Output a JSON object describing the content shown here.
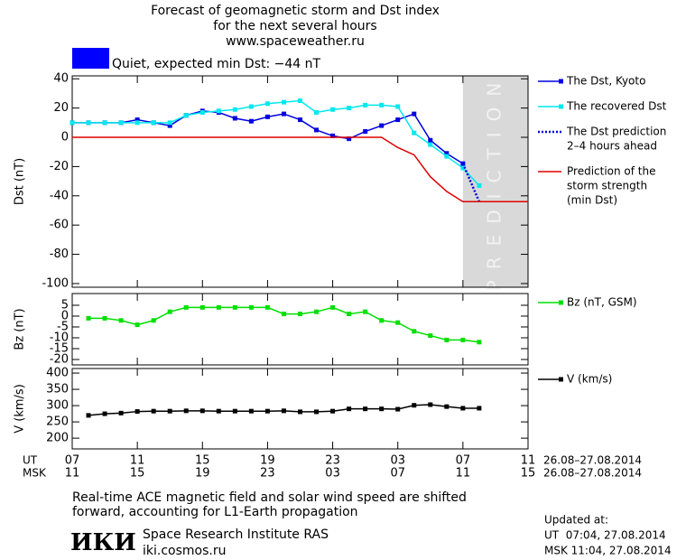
{
  "header": {
    "title_lines": [
      "Forecast of geomagnetic storm and Dst index",
      "for the next several hours",
      "www.spaceweather.ru"
    ],
    "status": "Quiet, expected min Dst: −44 nT",
    "status_color": "#0000ff"
  },
  "time_axis": {
    "ut_label": "UT",
    "msk_label": "MSK",
    "ut_ticks": [
      {
        "value": 0,
        "label": "07"
      },
      {
        "value": 4,
        "label": "11"
      },
      {
        "value": 8,
        "label": "15"
      },
      {
        "value": 12,
        "label": "19"
      },
      {
        "value": 16,
        "label": "23"
      },
      {
        "value": 20,
        "label": "03"
      },
      {
        "value": 24,
        "label": "07"
      },
      {
        "value": 28,
        "label": "11"
      }
    ],
    "msk_labels": [
      "11",
      "15",
      "19",
      "23",
      "03",
      "07",
      "11",
      "15"
    ],
    "range_labels": [
      "26.08–27.08.2014",
      "26.08–27.08.2014"
    ]
  },
  "chart_data": [
    {
      "type": "line",
      "ylabel": "Dst (nT)",
      "xlim": [
        0,
        28
      ],
      "ylim": [
        -102.5,
        42
      ],
      "yticks": [
        40,
        20,
        0,
        -20,
        -40,
        -60,
        -80,
        -100
      ],
      "shade": {
        "xlim": [
          24,
          28
        ],
        "label": "PREDICTION",
        "color": "#d9d9d9"
      },
      "series": [
        {
          "name": [
            "The Dst, Kyoto"
          ],
          "color": "#0000e0",
          "marker": "square",
          "dash": false,
          "x": [
            0,
            1,
            2,
            3,
            4,
            5,
            6,
            7,
            8,
            9,
            10,
            11,
            12,
            13,
            14,
            15,
            16,
            17,
            18,
            19,
            20,
            21,
            22,
            23,
            24
          ],
          "values": [
            10,
            10,
            10,
            10,
            12,
            10,
            8,
            15,
            18,
            17,
            13,
            11,
            14,
            16,
            12,
            5,
            1,
            -1,
            4,
            8,
            12,
            16,
            -2,
            -11,
            -18
          ]
        },
        {
          "name": [
            "The recovered Dst"
          ],
          "color": "#00e8f0",
          "marker": "square",
          "dash": false,
          "x": [
            0,
            1,
            2,
            3,
            4,
            5,
            6,
            7,
            8,
            9,
            10,
            11,
            12,
            13,
            14,
            15,
            16,
            17,
            18,
            19,
            20,
            21,
            22,
            23,
            24,
            25
          ],
          "values": [
            10,
            10,
            10,
            10,
            10,
            10,
            10,
            15,
            17,
            18,
            19,
            21,
            23,
            24,
            25,
            17,
            19,
            20,
            22,
            22,
            21,
            3,
            -5,
            -13,
            -21,
            -33
          ]
        },
        {
          "name": [
            "The Dst prediction",
            "2–4 hours ahead"
          ],
          "color": "#0000e0",
          "marker": "none",
          "dash": true,
          "x": [
            24,
            25
          ],
          "values": [
            -18,
            -44
          ]
        },
        {
          "name": [
            "Prediction of the",
            "storm strength",
            "(min Dst)"
          ],
          "color": "#e00000",
          "marker": "none",
          "dash": false,
          "x": [
            0,
            19,
            20,
            21,
            22,
            23,
            24,
            28
          ],
          "values": [
            0,
            0,
            -7,
            -12,
            -27,
            -37,
            -44,
            -44
          ]
        }
      ]
    },
    {
      "type": "line",
      "ylabel": "Bz (nT)",
      "xlim": [
        0,
        28
      ],
      "ylim": [
        -22.5,
        10.4
      ],
      "yticks": [
        5,
        0,
        -5,
        -10,
        -15,
        -20
      ],
      "series": [
        {
          "name": [
            "Bz (nT, GSM)"
          ],
          "color": "#00e000",
          "marker": "square",
          "dash": false,
          "x": [
            1,
            2,
            3,
            4,
            5,
            6,
            7,
            8,
            9,
            10,
            11,
            12,
            13,
            14,
            15,
            16,
            17,
            18,
            19,
            20,
            21,
            22,
            23,
            24,
            25
          ],
          "values": [
            -1,
            -1,
            -2,
            -4,
            -2,
            2,
            4,
            4,
            4,
            4,
            4,
            4,
            1,
            1,
            2,
            4,
            1,
            2,
            -2,
            -3,
            -7,
            -9,
            -11,
            -11,
            -12
          ]
        }
      ]
    },
    {
      "type": "line",
      "ylabel": "V (km/s)",
      "xlim": [
        0,
        28
      ],
      "ylim": [
        167,
        414
      ],
      "yticks": [
        400,
        350,
        300,
        250,
        200
      ],
      "series": [
        {
          "name": [
            "V (km/s)"
          ],
          "color": "#000000",
          "marker": "square",
          "dash": false,
          "x": [
            1,
            2,
            3,
            4,
            5,
            6,
            7,
            8,
            9,
            10,
            11,
            12,
            13,
            14,
            15,
            16,
            17,
            18,
            19,
            20,
            21,
            22,
            23,
            24,
            25
          ],
          "values": [
            270,
            275,
            277,
            282,
            283,
            283,
            284,
            284,
            283,
            283,
            283,
            283,
            284,
            281,
            281,
            283,
            290,
            290,
            290,
            289,
            301,
            303,
            297,
            292,
            292
          ]
        }
      ]
    }
  ],
  "notes": [
    "Real-time ACE magnetic field and solar wind speed are shifted",
    "forward, accounting for L1-Earth propagation"
  ],
  "footer": {
    "logo": "ИКИ",
    "institute": "Space Research Institute RAS",
    "site": "iki.cosmos.ru",
    "updated_label": "Updated at:",
    "updated_ut": "UT  07:04, 27.08.2014",
    "updated_msk": "MSK 11:04, 27.08.2014"
  }
}
